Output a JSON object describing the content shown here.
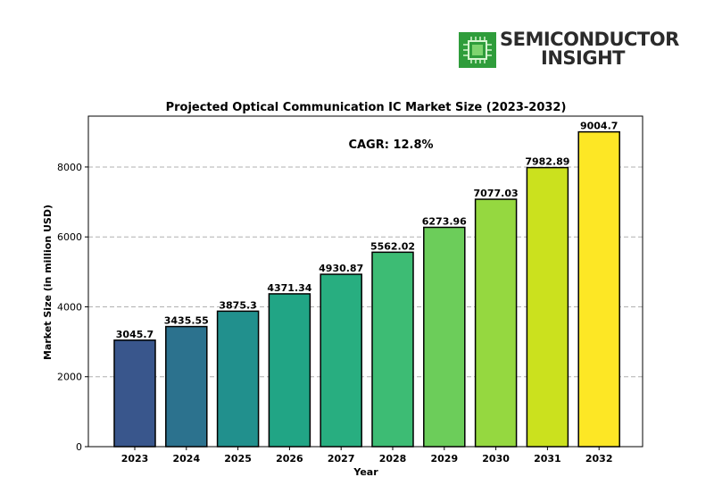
{
  "logo": {
    "line1": "SEMICONDUCTOR",
    "line2": "INSIGHT"
  },
  "chart_data": {
    "type": "bar",
    "title": "Projected Optical Communication IC Market Size (2023-2032)",
    "annotation": "CAGR: 12.8%",
    "xlabel": "Year",
    "ylabel": "Market Size (in million USD)",
    "categories": [
      "2023",
      "2024",
      "2025",
      "2026",
      "2027",
      "2028",
      "2029",
      "2030",
      "2031",
      "2032"
    ],
    "values": [
      3045.7,
      3435.55,
      3875.3,
      4371.34,
      4930.87,
      5562.02,
      6273.96,
      7077.03,
      7982.89,
      9004.7
    ],
    "value_labels": [
      "3045.7",
      "3435.55",
      "3875.3",
      "4371.34",
      "4930.87",
      "5562.02",
      "6273.96",
      "7077.03",
      "7982.89",
      "9004.7"
    ],
    "ylim": [
      0,
      9455
    ],
    "yticks": [
      0,
      2000,
      4000,
      6000,
      8000
    ],
    "ytick_labels": [
      "0",
      "2000",
      "4000",
      "6000",
      "8000"
    ],
    "grid": "y-dashed",
    "colors": [
      "#39568c",
      "#2c728e",
      "#21908d",
      "#21a585",
      "#28ae80",
      "#3dbc74",
      "#6ccd5a",
      "#95d840",
      "#cbe11e",
      "#fde725"
    ]
  }
}
